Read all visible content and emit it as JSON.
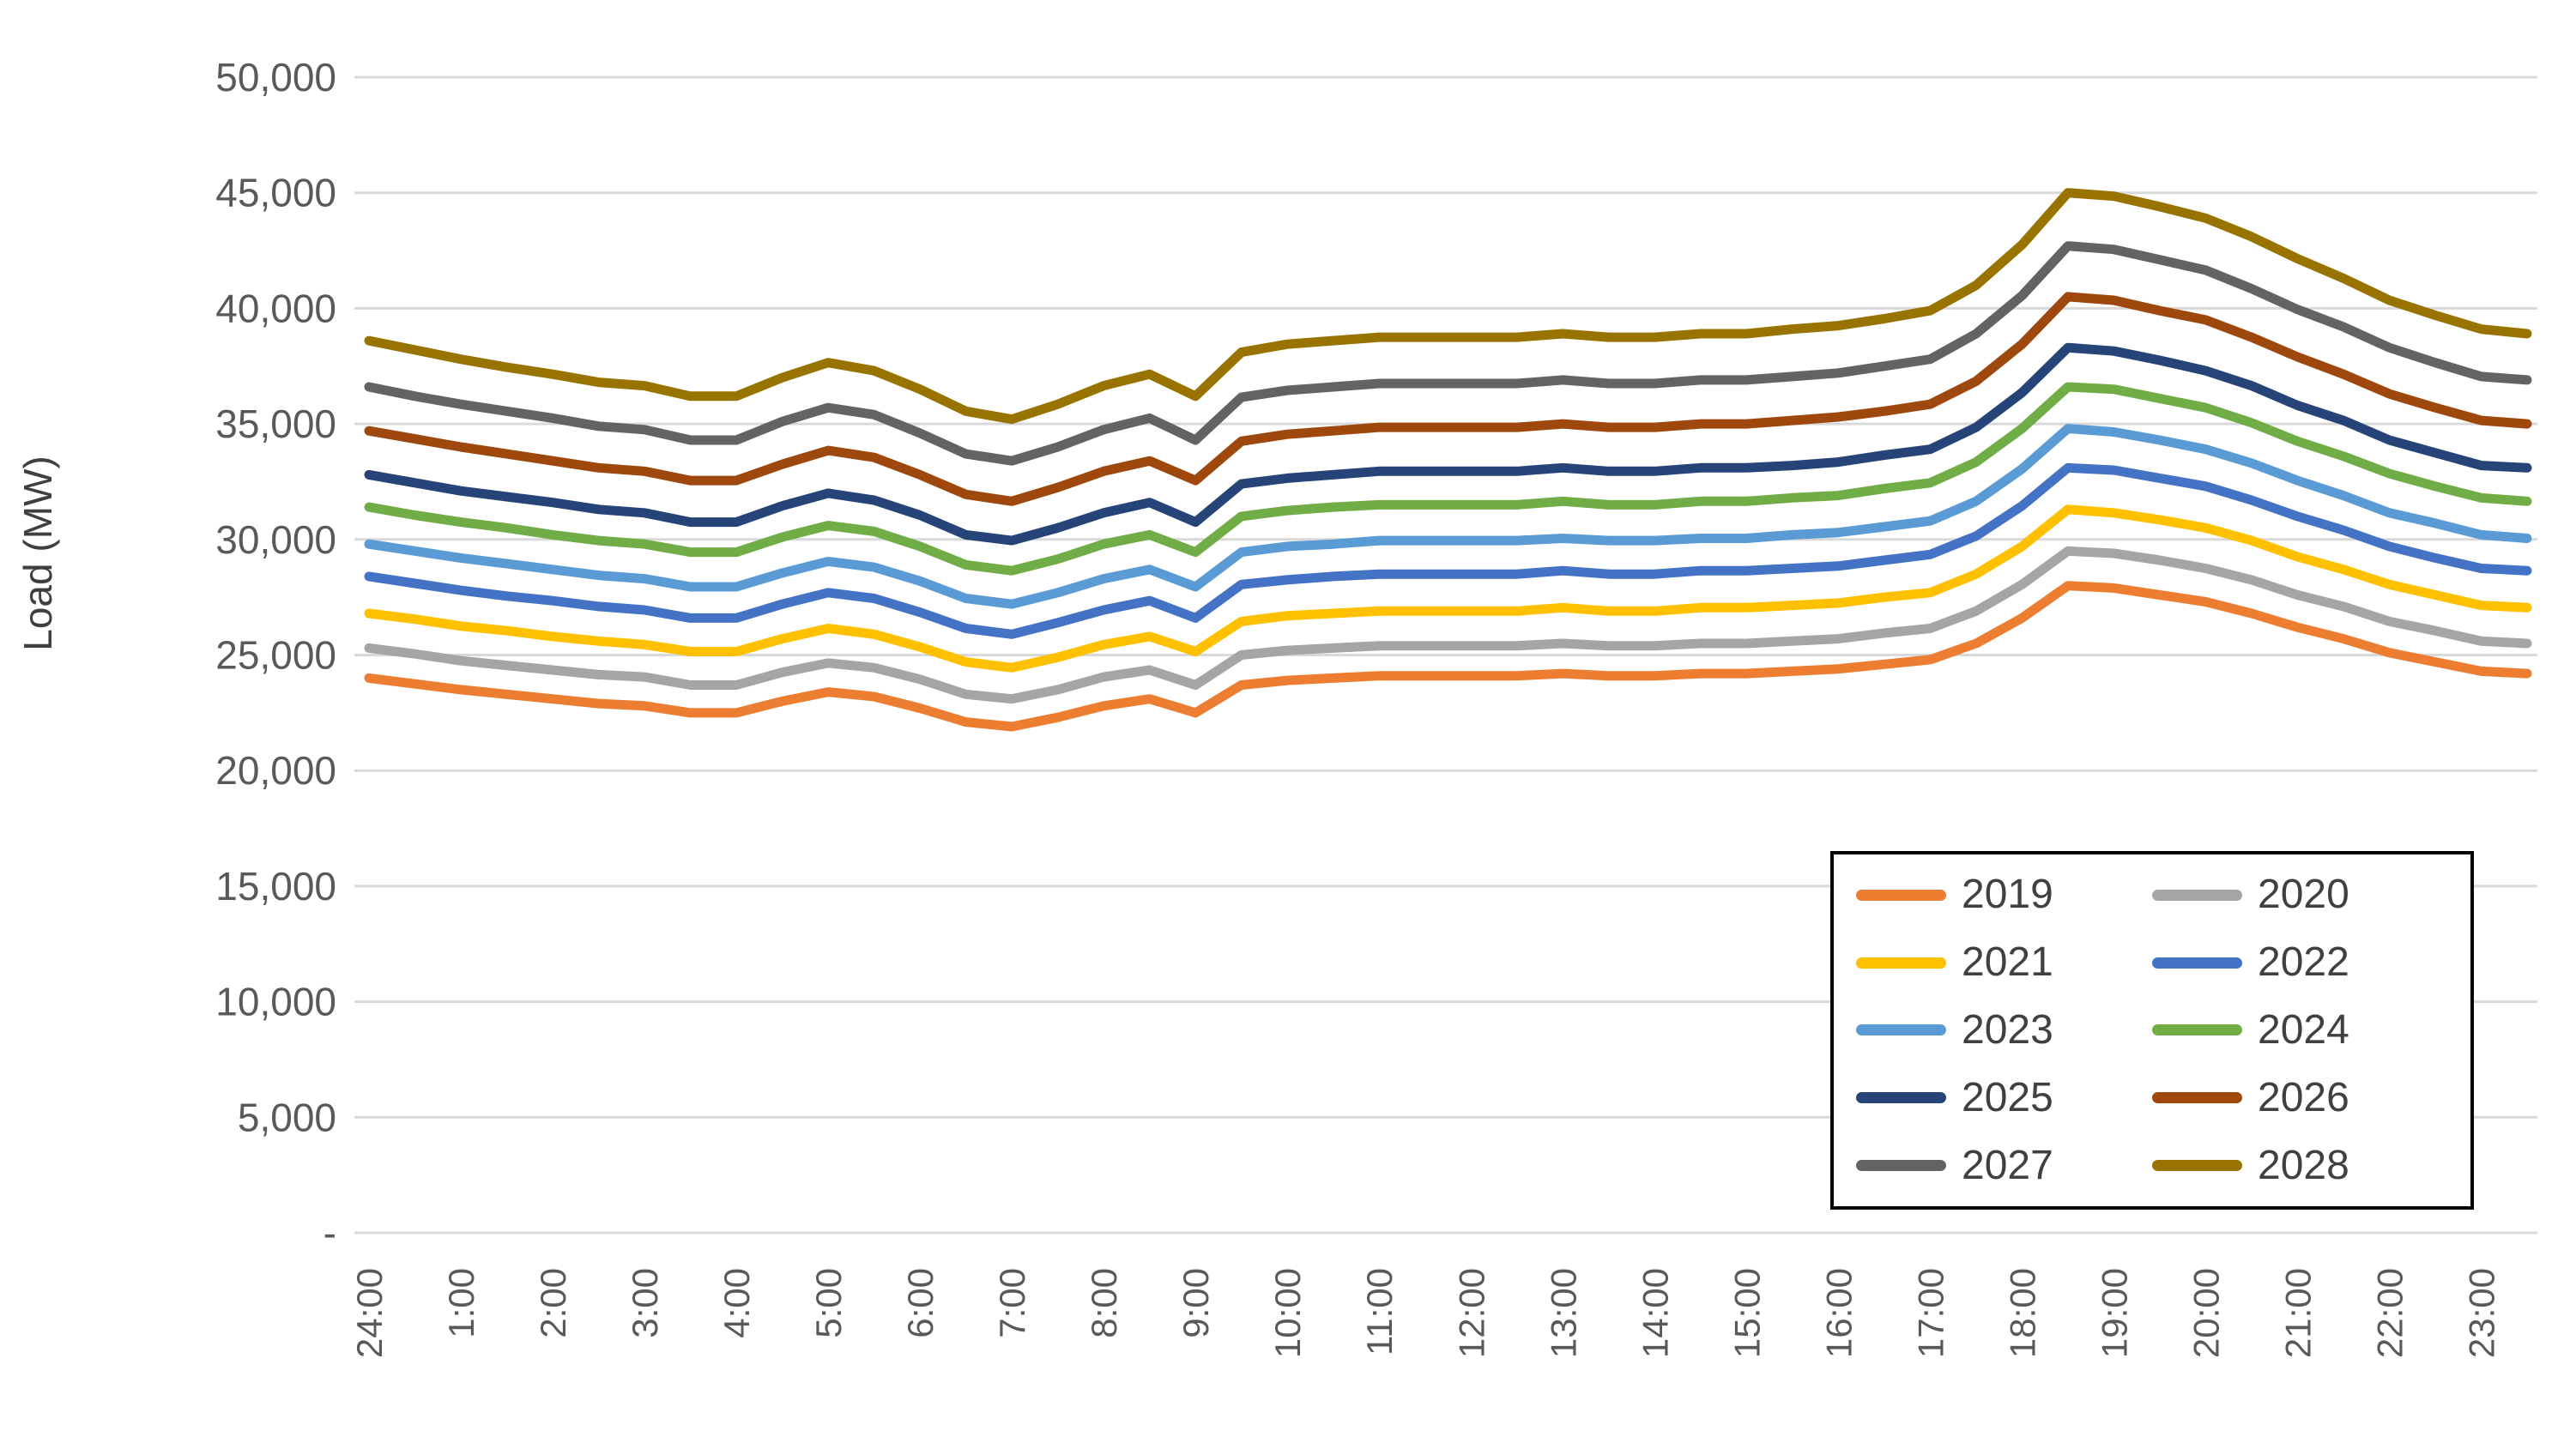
{
  "chart_data": {
    "type": "line",
    "title": "",
    "xlabel": "",
    "ylabel": "Load (MW)",
    "ylim": [
      0,
      50000
    ],
    "ytick_interval": 5000,
    "grid": "horizontal-only",
    "legend": {
      "position": "inside-lower-right",
      "columns": 2,
      "row_order": "left-to-right"
    },
    "style": {
      "grid_color": "#D9D9D9",
      "axis_text_color": "#595959",
      "ylabel_color": "#3F3F3F",
      "legend_text_color": "#404040",
      "legend_border_color": "#000000",
      "background": "#FFFFFF"
    },
    "yticks": [
      {
        "value": 0,
        "label": "-"
      },
      {
        "value": 5000,
        "label": "5,000"
      },
      {
        "value": 10000,
        "label": "10,000"
      },
      {
        "value": 15000,
        "label": "15,000"
      },
      {
        "value": 20000,
        "label": "20,000"
      },
      {
        "value": 25000,
        "label": "25,000"
      },
      {
        "value": 30000,
        "label": "30,000"
      },
      {
        "value": 35000,
        "label": "35,000"
      },
      {
        "value": 40000,
        "label": "40,000"
      },
      {
        "value": 45000,
        "label": "45,000"
      },
      {
        "value": 50000,
        "label": "50,000"
      }
    ],
    "xtick_labels": [
      "24:00",
      "1:00",
      "2:00",
      "3:00",
      "4:00",
      "5:00",
      "6:00",
      "7:00",
      "8:00",
      "9:00",
      "10:00",
      "11:00",
      "12:00",
      "13:00",
      "14:00",
      "15:00",
      "16:00",
      "17:00",
      "18:00",
      "19:00",
      "20:00",
      "21:00",
      "22:00",
      "23:00"
    ],
    "x": [
      "24:00",
      "24:30",
      "1:00",
      "1:30",
      "2:00",
      "2:30",
      "3:00",
      "3:30",
      "4:00",
      "4:30",
      "5:00",
      "5:30",
      "6:00",
      "6:30",
      "7:00",
      "7:30",
      "8:00",
      "8:30",
      "9:00",
      "9:30",
      "10:00",
      "10:30",
      "11:00",
      "11:30",
      "12:00",
      "12:30",
      "13:00",
      "13:30",
      "14:00",
      "14:30",
      "15:00",
      "15:30",
      "16:00",
      "16:30",
      "17:00",
      "17:30",
      "18:00",
      "18:30",
      "19:00",
      "19:30",
      "20:00",
      "20:30",
      "21:00",
      "21:30",
      "22:00",
      "22:30",
      "23:00",
      "23:30"
    ],
    "series": [
      {
        "name": "2019",
        "color": "#ED7D31",
        "values": [
          24000,
          23750,
          23500,
          23300,
          23100,
          22900,
          22800,
          22500,
          22500,
          23000,
          23400,
          23200,
          22700,
          22100,
          21900,
          22300,
          22800,
          23100,
          22500,
          23700,
          23900,
          24000,
          24100,
          24100,
          24100,
          24100,
          24200,
          24100,
          24100,
          24200,
          24200,
          24300,
          24400,
          24600,
          24800,
          25500,
          26600,
          28000,
          27900,
          27600,
          27300,
          26800,
          26200,
          25700,
          25100,
          24700,
          24300,
          24200
        ]
      },
      {
        "name": "2020",
        "color": "#A5A5A5",
        "values": [
          25300,
          25050,
          24750,
          24550,
          24350,
          24150,
          24050,
          23700,
          23700,
          24250,
          24650,
          24450,
          23950,
          23300,
          23100,
          23500,
          24050,
          24350,
          23700,
          25000,
          25200,
          25300,
          25400,
          25400,
          25400,
          25400,
          25500,
          25400,
          25400,
          25500,
          25500,
          25600,
          25700,
          25950,
          26150,
          26900,
          28050,
          29500,
          29400,
          29100,
          28750,
          28250,
          27600,
          27100,
          26450,
          26050,
          25600,
          25500
        ]
      },
      {
        "name": "2021",
        "color": "#FFC000",
        "values": [
          26800,
          26550,
          26250,
          26050,
          25800,
          25600,
          25450,
          25150,
          25150,
          25700,
          26150,
          25900,
          25350,
          24700,
          24450,
          24900,
          25450,
          25800,
          25150,
          26450,
          26700,
          26800,
          26900,
          26900,
          26900,
          26900,
          27050,
          26900,
          26900,
          27050,
          27050,
          27150,
          27250,
          27500,
          27700,
          28500,
          29700,
          31300,
          31150,
          30850,
          30500,
          29950,
          29250,
          28700,
          28050,
          27600,
          27150,
          27050
        ]
      },
      {
        "name": "2022",
        "color": "#4472C4",
        "values": [
          28400,
          28100,
          27800,
          27550,
          27350,
          27100,
          26950,
          26600,
          26600,
          27200,
          27700,
          27450,
          26850,
          26150,
          25900,
          26400,
          26950,
          27350,
          26600,
          28050,
          28250,
          28400,
          28500,
          28500,
          28500,
          28500,
          28650,
          28500,
          28500,
          28650,
          28650,
          28750,
          28850,
          29100,
          29350,
          30150,
          31450,
          33100,
          33000,
          32650,
          32300,
          31700,
          31000,
          30400,
          29700,
          29200,
          28750,
          28650
        ]
      },
      {
        "name": "2023",
        "color": "#5B9BD5",
        "values": [
          29800,
          29500,
          29200,
          28950,
          28700,
          28450,
          28300,
          27950,
          27950,
          28550,
          29050,
          28800,
          28200,
          27450,
          27200,
          27700,
          28300,
          28700,
          27950,
          29450,
          29700,
          29800,
          29950,
          29950,
          29950,
          29950,
          30050,
          29950,
          29950,
          30050,
          30050,
          30200,
          30300,
          30550,
          30800,
          31650,
          33050,
          34800,
          34650,
          34300,
          33900,
          33300,
          32550,
          31900,
          31150,
          30700,
          30200,
          30050
        ]
      },
      {
        "name": "2024",
        "color": "#70AD47",
        "values": [
          31400,
          31050,
          30750,
          30500,
          30200,
          29950,
          29800,
          29450,
          29450,
          30100,
          30600,
          30350,
          29700,
          28900,
          28650,
          29150,
          29800,
          30200,
          29450,
          31000,
          31250,
          31400,
          31500,
          31500,
          31500,
          31500,
          31650,
          31500,
          31500,
          31650,
          31650,
          31800,
          31900,
          32200,
          32450,
          33350,
          34800,
          36600,
          36500,
          36100,
          35700,
          35050,
          34250,
          33600,
          32850,
          32300,
          31800,
          31650
        ]
      },
      {
        "name": "2025",
        "color": "#264478",
        "values": [
          32800,
          32450,
          32100,
          31850,
          31600,
          31300,
          31150,
          30750,
          30750,
          31450,
          32000,
          31700,
          31050,
          30200,
          29950,
          30500,
          31150,
          31600,
          30750,
          32400,
          32650,
          32800,
          32950,
          32950,
          32950,
          32950,
          33100,
          32950,
          32950,
          33100,
          33100,
          33200,
          33350,
          33650,
          33900,
          34850,
          36350,
          38300,
          38150,
          37750,
          37300,
          36650,
          35800,
          35150,
          34300,
          33750,
          33200,
          33100
        ]
      },
      {
        "name": "2026",
        "color": "#9E480E",
        "values": [
          34700,
          34350,
          34000,
          33700,
          33400,
          33100,
          32950,
          32550,
          32550,
          33250,
          33850,
          33550,
          32800,
          31950,
          31650,
          32250,
          32950,
          33400,
          32550,
          34250,
          34550,
          34700,
          34850,
          34850,
          34850,
          34850,
          35000,
          34850,
          34850,
          35000,
          35000,
          35150,
          35300,
          35550,
          35850,
          36850,
          38450,
          40500,
          40350,
          39900,
          39500,
          38750,
          37900,
          37150,
          36300,
          35700,
          35150,
          35000
        ]
      },
      {
        "name": "2027",
        "color": "#636363",
        "values": [
          36600,
          36200,
          35850,
          35550,
          35250,
          34900,
          34750,
          34300,
          34300,
          35100,
          35700,
          35400,
          34600,
          33700,
          33400,
          34000,
          34750,
          35250,
          34300,
          36150,
          36450,
          36600,
          36750,
          36750,
          36750,
          36750,
          36900,
          36750,
          36750,
          36900,
          36900,
          37050,
          37200,
          37500,
          37800,
          38900,
          40550,
          42700,
          42550,
          42100,
          41650,
          40850,
          39950,
          39200,
          38300,
          37650,
          37050,
          36900
        ]
      },
      {
        "name": "2028",
        "color": "#997300",
        "values": [
          38600,
          38200,
          37800,
          37450,
          37150,
          36800,
          36650,
          36200,
          36200,
          37000,
          37650,
          37300,
          36500,
          35550,
          35200,
          35850,
          36650,
          37150,
          36200,
          38100,
          38450,
          38600,
          38750,
          38750,
          38750,
          38750,
          38900,
          38750,
          38750,
          38900,
          38900,
          39100,
          39250,
          39550,
          39900,
          41000,
          42750,
          45000,
          44850,
          44400,
          43900,
          43100,
          42150,
          41300,
          40350,
          39700,
          39100,
          38900
        ]
      }
    ]
  }
}
